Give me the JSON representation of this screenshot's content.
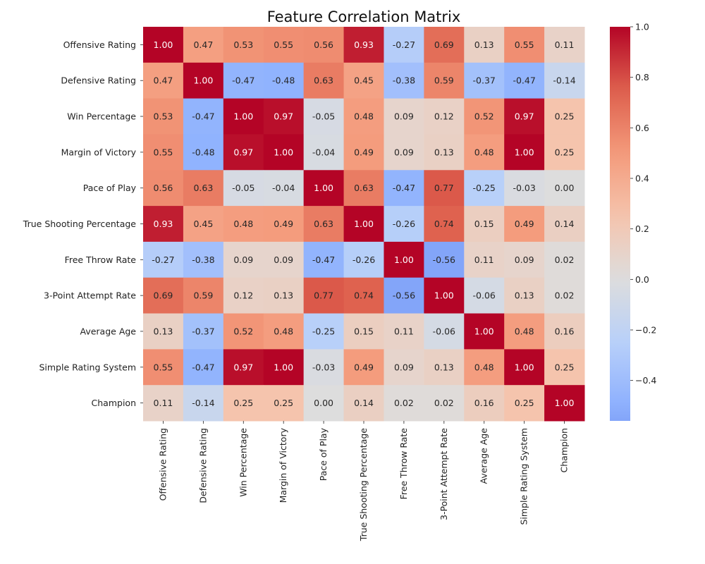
{
  "chart_data": {
    "type": "heatmap",
    "title": "Feature Correlation Matrix",
    "xlabel": "",
    "ylabel": "",
    "labels": [
      "Offensive Rating",
      "Defensive Rating",
      "Win Percentage",
      "Margin of Victory",
      "Pace of Play",
      "True Shooting Percentage",
      "Free Throw Rate",
      "3-Point Attempt Rate",
      "Average Age",
      "Simple Rating System",
      "Champion"
    ],
    "values": [
      [
        1.0,
        0.47,
        0.53,
        0.55,
        0.56,
        0.93,
        -0.27,
        0.69,
        0.13,
        0.55,
        0.11
      ],
      [
        0.47,
        1.0,
        -0.47,
        -0.48,
        0.63,
        0.45,
        -0.38,
        0.59,
        -0.37,
        -0.47,
        -0.14
      ],
      [
        0.53,
        -0.47,
        1.0,
        0.97,
        -0.05,
        0.48,
        0.09,
        0.12,
        0.52,
        0.97,
        0.25
      ],
      [
        0.55,
        -0.48,
        0.97,
        1.0,
        -0.04,
        0.49,
        0.09,
        0.13,
        0.48,
        1.0,
        0.25
      ],
      [
        0.56,
        0.63,
        -0.05,
        -0.04,
        1.0,
        0.63,
        -0.47,
        0.77,
        -0.25,
        -0.03,
        0.0
      ],
      [
        0.93,
        0.45,
        0.48,
        0.49,
        0.63,
        1.0,
        -0.26,
        0.74,
        0.15,
        0.49,
        0.14
      ],
      [
        -0.27,
        -0.38,
        0.09,
        0.09,
        -0.47,
        -0.26,
        1.0,
        -0.56,
        0.11,
        0.09,
        0.02
      ],
      [
        0.69,
        0.59,
        0.12,
        0.13,
        0.77,
        0.74,
        -0.56,
        1.0,
        -0.06,
        0.13,
        0.02
      ],
      [
        0.13,
        -0.37,
        0.52,
        0.48,
        -0.25,
        0.15,
        0.11,
        -0.06,
        1.0,
        0.48,
        0.16
      ],
      [
        0.55,
        -0.47,
        0.97,
        1.0,
        -0.03,
        0.49,
        0.09,
        0.13,
        0.48,
        1.0,
        0.25
      ],
      [
        0.11,
        -0.14,
        0.25,
        0.25,
        0.0,
        0.14,
        0.02,
        0.02,
        0.16,
        0.25,
        1.0
      ]
    ],
    "colormap": "coolwarm",
    "center": 0,
    "vmin": -0.56,
    "vmax": 1.0,
    "colorbar_ticks": [
      1.0,
      0.8,
      0.6,
      0.4,
      0.2,
      0.0,
      -0.2,
      -0.4
    ],
    "colorbar_tick_labels": [
      "1.0",
      "0.8",
      "0.6",
      "0.4",
      "0.2",
      "0.0",
      "−0.2",
      "−0.4"
    ],
    "annotation_format": "2 decimals",
    "legend": "colorbar-right"
  }
}
